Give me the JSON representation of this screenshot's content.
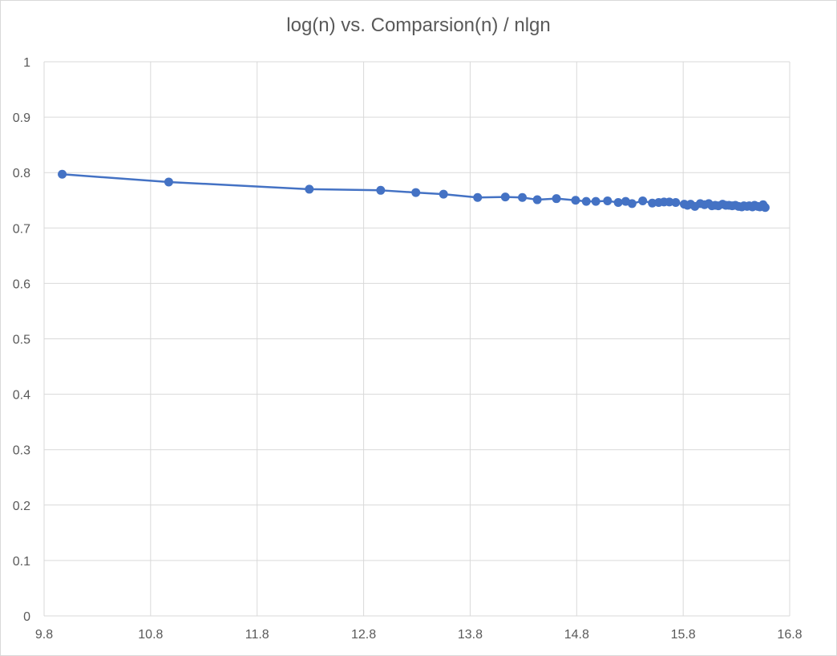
{
  "chart_data": {
    "type": "scatter",
    "title": "log(n) vs. Comparsion(n) / nlgn",
    "xlim": [
      9.8,
      16.8
    ],
    "ylim": [
      0,
      1
    ],
    "x_ticks": [
      "9.8",
      "10.8",
      "11.8",
      "12.8",
      "13.8",
      "14.8",
      "15.8",
      "16.8"
    ],
    "y_ticks": [
      "0",
      "0.1",
      "0.2",
      "0.3",
      "0.4",
      "0.5",
      "0.6",
      "0.7",
      "0.8",
      "0.9",
      "1"
    ],
    "grid": true,
    "legend": "none",
    "series": [
      {
        "color": "#4472c4",
        "x": [
          9.97,
          10.97,
          12.29,
          12.96,
          13.29,
          13.55,
          13.87,
          14.13,
          14.29,
          14.43,
          14.61,
          14.79,
          14.89,
          14.98,
          15.09,
          15.19,
          15.26,
          15.32,
          15.42,
          15.51,
          15.57,
          15.62,
          15.67,
          15.73,
          15.81,
          15.84,
          15.87,
          15.91,
          15.96,
          16.0,
          16.04,
          16.07,
          16.1,
          16.13,
          16.17,
          16.2,
          16.23,
          16.26,
          16.29,
          16.32,
          16.35,
          16.37,
          16.4,
          16.42,
          16.45,
          16.47,
          16.5,
          16.52,
          16.55,
          16.57
        ],
        "y": [
          0.797,
          0.783,
          0.77,
          0.768,
          0.764,
          0.761,
          0.755,
          0.756,
          0.755,
          0.751,
          0.753,
          0.75,
          0.748,
          0.748,
          0.749,
          0.746,
          0.748,
          0.744,
          0.749,
          0.745,
          0.746,
          0.747,
          0.747,
          0.746,
          0.743,
          0.741,
          0.743,
          0.739,
          0.744,
          0.742,
          0.744,
          0.74,
          0.741,
          0.74,
          0.743,
          0.741,
          0.741,
          0.74,
          0.741,
          0.739,
          0.738,
          0.74,
          0.739,
          0.74,
          0.738,
          0.741,
          0.739,
          0.738,
          0.742,
          0.737
        ]
      }
    ]
  }
}
